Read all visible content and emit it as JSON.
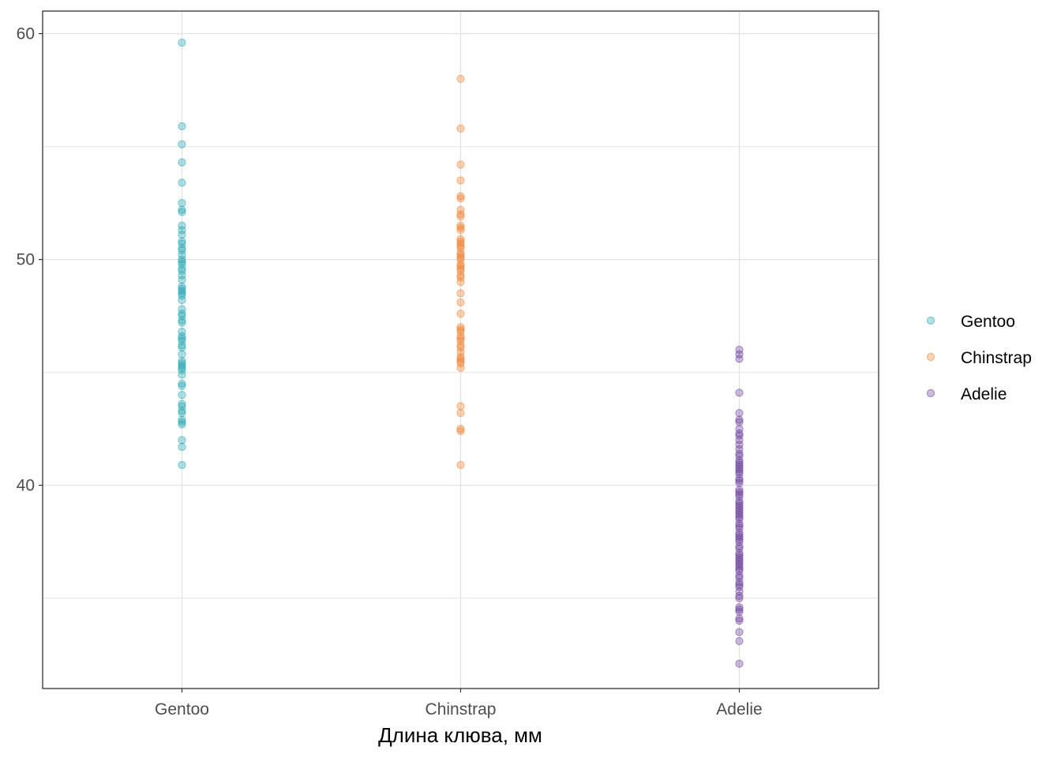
{
  "chart_data": {
    "type": "scatter",
    "xlabel": "Длина клюва, мм",
    "ylabel": "",
    "categories": [
      "Gentoo",
      "Chinstrap",
      "Adelie"
    ],
    "ylim": [
      31,
      61
    ],
    "yticks": [
      40,
      50,
      60
    ],
    "grid": true,
    "legend_position": "right",
    "series": [
      {
        "name": "Gentoo",
        "color": "#1fa5b3",
        "category": "Gentoo",
        "values": [
          59.6,
          55.9,
          55.1,
          54.3,
          53.4,
          52.5,
          52.2,
          52.1,
          51.5,
          51.3,
          51.1,
          50.8,
          50.7,
          50.5,
          50.4,
          50.2,
          50.0,
          49.9,
          49.8,
          49.6,
          49.5,
          49.3,
          49.1,
          48.8,
          48.7,
          48.6,
          48.5,
          48.4,
          48.2,
          47.8,
          47.6,
          47.5,
          47.3,
          47.2,
          46.8,
          46.6,
          46.5,
          46.4,
          46.2,
          46.1,
          45.8,
          45.5,
          45.4,
          45.3,
          45.2,
          45.1,
          44.9,
          44.5,
          44.4,
          44.0,
          43.6,
          43.5,
          43.3,
          43.2,
          42.9,
          42.8,
          42.7,
          42.0,
          41.7,
          40.9
        ]
      },
      {
        "name": "Chinstrap",
        "color": "#f07f2b",
        "category": "Chinstrap",
        "values": [
          58.0,
          55.8,
          54.2,
          53.5,
          52.8,
          52.7,
          52.2,
          52.0,
          51.9,
          51.5,
          51.4,
          51.3,
          50.9,
          50.8,
          50.7,
          50.6,
          50.5,
          50.3,
          50.2,
          50.1,
          50.0,
          49.8,
          49.7,
          49.6,
          49.5,
          49.3,
          49.2,
          49.0,
          48.5,
          48.1,
          47.6,
          47.0,
          46.9,
          46.8,
          46.6,
          46.5,
          46.4,
          46.2,
          46.1,
          45.9,
          45.7,
          45.6,
          45.5,
          45.4,
          45.2,
          43.5,
          43.2,
          42.5,
          42.4,
          40.9
        ]
      },
      {
        "name": "Adelie",
        "color": "#6a3d9a",
        "category": "Adelie",
        "values": [
          46.0,
          45.8,
          45.6,
          44.1,
          43.2,
          42.9,
          42.8,
          42.5,
          42.3,
          42.2,
          42.0,
          41.8,
          41.6,
          41.4,
          41.3,
          41.1,
          41.0,
          40.9,
          40.8,
          40.7,
          40.6,
          40.5,
          40.3,
          40.2,
          40.1,
          39.8,
          39.7,
          39.6,
          39.5,
          39.3,
          39.2,
          39.1,
          39.0,
          38.9,
          38.8,
          38.7,
          38.6,
          38.5,
          38.3,
          38.2,
          38.1,
          37.9,
          37.8,
          37.7,
          37.6,
          37.5,
          37.3,
          37.2,
          37.0,
          36.9,
          36.8,
          36.7,
          36.6,
          36.5,
          36.4,
          36.3,
          36.2,
          36.0,
          35.9,
          35.7,
          35.6,
          35.5,
          35.3,
          35.1,
          35.0,
          34.6,
          34.5,
          34.4,
          34.1,
          34.0,
          33.5,
          33.1,
          32.1
        ]
      }
    ]
  }
}
